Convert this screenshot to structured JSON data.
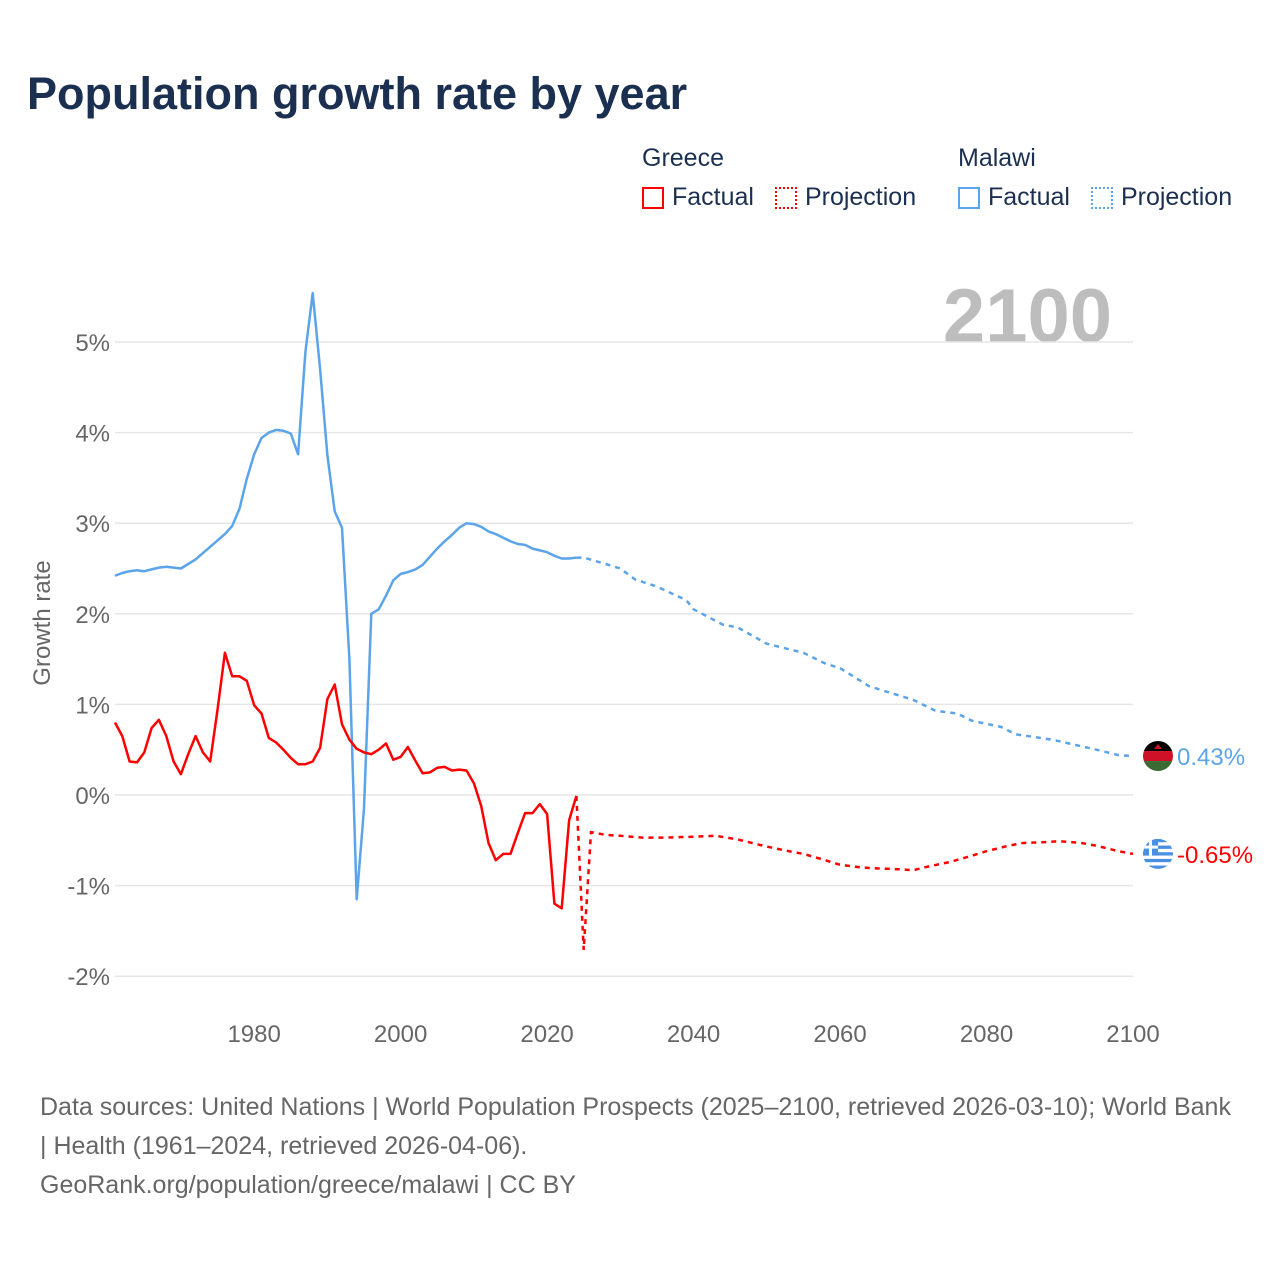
{
  "title": "Population growth rate by year",
  "legend": [
    {
      "group": "Greece",
      "factual": "Factual",
      "projection": "Projection",
      "color": "#ff0000"
    },
    {
      "group": "Malawi",
      "factual": "Factual",
      "projection": "Projection",
      "color": "#5ba4ea"
    }
  ],
  "footer": {
    "sources": "Data sources: United Nations | World Population Prospects (2025–2100, retrieved 2026-03-10); World Bank | Health (1961–2024, retrieved 2026-04-06).",
    "credit": "GeoRank.org/population/greece/malawi | CC BY"
  },
  "chart_data": {
    "type": "line",
    "title": "Population growth rate by year",
    "ylabel": "Growth rate",
    "xlabel": "",
    "current_year_label": "2100",
    "xlim": [
      1961,
      2100
    ],
    "ylim": [
      -2.2,
      5.6
    ],
    "x_ticks": [
      1980,
      2000,
      2020,
      2040,
      2060,
      2080,
      2100
    ],
    "y_ticks": [
      -2,
      -1,
      0,
      1,
      2,
      3,
      4,
      5
    ],
    "y_tick_labels": [
      "-2%",
      "-1%",
      "0%",
      "1%",
      "2%",
      "3%",
      "4%",
      "5%"
    ],
    "grid": true,
    "legend_position": "top-right",
    "series": [
      {
        "name": "Greece",
        "color": "#ff0000",
        "end_label": "-0.65%",
        "flag": "greece-flag",
        "factual": {
          "start_year": 1961,
          "values": [
            0.8,
            0.65,
            0.37,
            0.36,
            0.47,
            0.74,
            0.83,
            0.65,
            0.37,
            0.23,
            0.45,
            0.65,
            0.47,
            0.37,
            0.94,
            1.57,
            1.31,
            1.31,
            1.26,
            0.99,
            0.9,
            0.63,
            0.58,
            0.5,
            0.41,
            0.34,
            0.34,
            0.37,
            0.52,
            1.06,
            1.22,
            0.78,
            0.61,
            0.51,
            0.47,
            0.45,
            0.5,
            0.57,
            0.39,
            0.42,
            0.53,
            0.38,
            0.24,
            0.25,
            0.3,
            0.31,
            0.27,
            0.28,
            0.27,
            0.13,
            -0.12,
            -0.53,
            -0.72,
            -0.65,
            -0.65,
            -0.42,
            -0.2,
            -0.2,
            -0.1,
            -0.21,
            -1.2,
            -1.25,
            -0.28,
            -0.01
          ]
        },
        "projection": {
          "x": [
            2024,
            2025,
            2026,
            2028,
            2030,
            2033,
            2036,
            2040,
            2043,
            2046,
            2050,
            2053,
            2055,
            2058,
            2060,
            2063,
            2065,
            2068,
            2070,
            2072,
            2075,
            2078,
            2080,
            2083,
            2085,
            2088,
            2090,
            2093,
            2095,
            2098,
            2100
          ],
          "y": [
            -0.01,
            -1.71,
            -0.41,
            -0.44,
            -0.45,
            -0.47,
            -0.47,
            -0.46,
            -0.45,
            -0.49,
            -0.57,
            -0.62,
            -0.65,
            -0.72,
            -0.77,
            -0.8,
            -0.81,
            -0.82,
            -0.83,
            -0.79,
            -0.74,
            -0.67,
            -0.62,
            -0.56,
            -0.53,
            -0.52,
            -0.51,
            -0.53,
            -0.56,
            -0.62,
            -0.65
          ]
        }
      },
      {
        "name": "Malawi",
        "color": "#5ba4ea",
        "end_label": "0.43%",
        "flag": "malawi-flag",
        "factual": {
          "start_year": 1961,
          "values": [
            2.42,
            2.45,
            2.47,
            2.48,
            2.47,
            2.49,
            2.51,
            2.52,
            2.51,
            2.5,
            2.55,
            2.6,
            2.67,
            2.74,
            2.81,
            2.88,
            2.97,
            3.16,
            3.49,
            3.76,
            3.94,
            4.0,
            4.03,
            4.02,
            3.99,
            3.76,
            4.89,
            5.54,
            4.7,
            3.75,
            3.13,
            2.95,
            1.5,
            -1.15,
            -0.15,
            2.0,
            2.05,
            2.2,
            2.37,
            2.44,
            2.46,
            2.49,
            2.54,
            2.63,
            2.72,
            2.8,
            2.87,
            2.95,
            3.0,
            2.99,
            2.96,
            2.91,
            2.88,
            2.84,
            2.8,
            2.77,
            2.76,
            2.72,
            2.7,
            2.68,
            2.64,
            2.61,
            2.61,
            2.62
          ]
        },
        "projection": {
          "x": [
            2024,
            2025,
            2028,
            2030,
            2032,
            2035,
            2039,
            2040,
            2044,
            2046,
            2050,
            2055,
            2058,
            2060,
            2064,
            2070,
            2073,
            2076,
            2078,
            2082,
            2084,
            2089,
            2095,
            2098,
            2100
          ],
          "y": [
            2.62,
            2.62,
            2.55,
            2.5,
            2.38,
            2.3,
            2.15,
            2.05,
            1.88,
            1.85,
            1.67,
            1.57,
            1.45,
            1.4,
            1.2,
            1.05,
            0.93,
            0.9,
            0.82,
            0.75,
            0.67,
            0.61,
            0.5,
            0.44,
            0.43
          ]
        }
      }
    ]
  }
}
